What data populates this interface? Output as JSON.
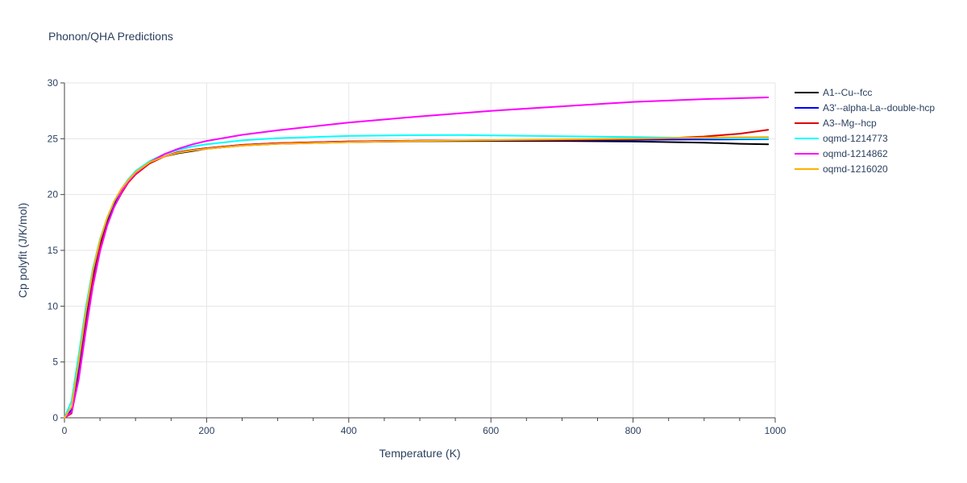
{
  "chart_data": {
    "type": "line",
    "title": "Phonon/QHA Predictions",
    "xlabel": "Temperature (K)",
    "ylabel": "Cp polyfit (J/K/mol)",
    "xlim": [
      0,
      1000
    ],
    "ylim": [
      0,
      30
    ],
    "xticks": [
      0,
      200,
      400,
      600,
      800,
      1000
    ],
    "yticks": [
      0,
      5,
      10,
      15,
      20,
      25,
      30
    ],
    "grid": true,
    "legend_position": "right",
    "series": [
      {
        "name": "A1--Cu--fcc",
        "color": "#000000",
        "x": [
          0,
          10,
          20,
          30,
          40,
          50,
          60,
          70,
          80,
          90,
          100,
          120,
          140,
          160,
          180,
          200,
          250,
          300,
          400,
          500,
          600,
          700,
          800,
          850,
          900,
          950,
          990
        ],
        "y": [
          0,
          0.6,
          4.2,
          8.8,
          12.7,
          15.6,
          17.6,
          19.1,
          20.3,
          21.2,
          21.9,
          22.8,
          23.4,
          23.7,
          23.9,
          24.1,
          24.4,
          24.55,
          24.7,
          24.78,
          24.8,
          24.8,
          24.75,
          24.7,
          24.65,
          24.55,
          24.5
        ]
      },
      {
        "name": "A3'--alpha-La--double-hcp",
        "color": "#0000ff",
        "x": [
          0,
          10,
          20,
          30,
          40,
          50,
          60,
          70,
          80,
          90,
          100,
          120,
          140,
          160,
          180,
          200,
          250,
          300,
          400,
          500,
          600,
          700,
          800,
          850,
          900,
          950,
          990
        ],
        "y": [
          0,
          0.7,
          4.4,
          9.0,
          12.9,
          15.8,
          17.8,
          19.3,
          20.4,
          21.3,
          22.0,
          22.9,
          23.4,
          23.8,
          24.0,
          24.15,
          24.45,
          24.6,
          24.75,
          24.82,
          24.85,
          24.88,
          24.9,
          24.92,
          24.93,
          24.95,
          24.96
        ]
      },
      {
        "name": "A3--Mg--hcp",
        "color": "#e00000",
        "x": [
          0,
          10,
          20,
          30,
          40,
          50,
          60,
          70,
          80,
          90,
          100,
          120,
          140,
          160,
          180,
          200,
          250,
          300,
          400,
          500,
          600,
          700,
          800,
          850,
          900,
          950,
          990
        ],
        "y": [
          0,
          0.4,
          3.6,
          8.2,
          12.2,
          15.2,
          17.3,
          18.9,
          20.1,
          21.1,
          21.8,
          22.8,
          23.4,
          23.8,
          24.0,
          24.15,
          24.45,
          24.6,
          24.75,
          24.82,
          24.86,
          24.9,
          24.98,
          25.05,
          25.2,
          25.45,
          25.8
        ]
      },
      {
        "name": "oqmd-1214773",
        "color": "#00ffff",
        "x": [
          0,
          10,
          20,
          30,
          40,
          50,
          60,
          70,
          80,
          90,
          100,
          120,
          140,
          160,
          180,
          200,
          250,
          300,
          400,
          500,
          560,
          600,
          700,
          800,
          850,
          900,
          950,
          990
        ],
        "y": [
          0,
          1.5,
          5.6,
          9.9,
          13.4,
          16.0,
          17.9,
          19.4,
          20.5,
          21.4,
          22.1,
          23.0,
          23.6,
          24.0,
          24.3,
          24.5,
          24.85,
          25.05,
          25.25,
          25.32,
          25.33,
          25.3,
          25.22,
          25.15,
          25.1,
          25.05,
          25.02,
          25.0
        ]
      },
      {
        "name": "oqmd-1214862",
        "color": "#ff00ff",
        "x": [
          0,
          10,
          20,
          30,
          40,
          50,
          60,
          70,
          80,
          90,
          100,
          120,
          140,
          160,
          180,
          200,
          250,
          300,
          400,
          500,
          600,
          700,
          800,
          900,
          990
        ],
        "y": [
          0,
          0.5,
          3.4,
          7.8,
          11.8,
          14.9,
          17.2,
          18.9,
          20.2,
          21.2,
          21.9,
          22.9,
          23.6,
          24.1,
          24.5,
          24.8,
          25.35,
          25.75,
          26.45,
          27.0,
          27.5,
          27.9,
          28.3,
          28.55,
          28.7
        ]
      },
      {
        "name": "oqmd-1216020",
        "color": "#ffb000",
        "x": [
          0,
          10,
          20,
          30,
          40,
          50,
          60,
          70,
          80,
          90,
          100,
          120,
          140,
          160,
          180,
          200,
          250,
          300,
          400,
          500,
          600,
          700,
          800,
          900,
          990
        ],
        "y": [
          0,
          1.0,
          5.0,
          9.5,
          13.2,
          15.9,
          17.9,
          19.4,
          20.5,
          21.3,
          22.0,
          22.9,
          23.4,
          23.75,
          23.95,
          24.1,
          24.4,
          24.55,
          24.7,
          24.8,
          24.87,
          24.95,
          25.02,
          25.1,
          25.15
        ]
      }
    ]
  }
}
